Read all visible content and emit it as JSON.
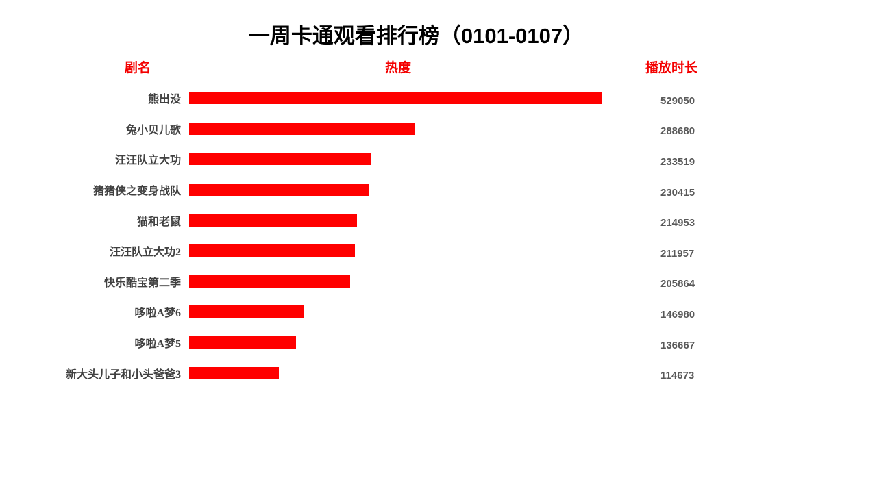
{
  "page": {
    "title": "一周卡通观看排行榜（0101-0107）",
    "headers": {
      "name": "剧名",
      "heat": "热度",
      "duration": "播放时长"
    }
  },
  "colors": {
    "bar": "#ff0000",
    "header_text": "#f40000",
    "label_text": "#404040",
    "value_text": "#595959",
    "axis_line": "#d9d9d9",
    "title_text": "#000000",
    "background": "#ffffff"
  },
  "chart_data": {
    "type": "bar",
    "orientation": "horizontal",
    "title": "一周卡通观看排行榜（0101-0107）",
    "category_column_label": "剧名",
    "bar_column_label": "热度",
    "value_column_label": "播放时长",
    "categories": [
      "熊出没",
      "兔小贝儿歌",
      "汪汪队立大功",
      "猪猪侠之变身战队",
      "猫和老鼠",
      "汪汪队立大功2",
      "快乐酷宝第二季",
      "哆啦A梦6",
      "哆啦A梦5",
      "新大头儿子和小头爸爸3"
    ],
    "values": [
      529050,
      288680,
      233519,
      230415,
      214953,
      211957,
      205864,
      146980,
      136667,
      114673
    ],
    "xlim": [
      0,
      560000
    ],
    "grid": false,
    "legend": "none",
    "bar_color": "#ff0000",
    "value_labels_position": "right-column"
  }
}
